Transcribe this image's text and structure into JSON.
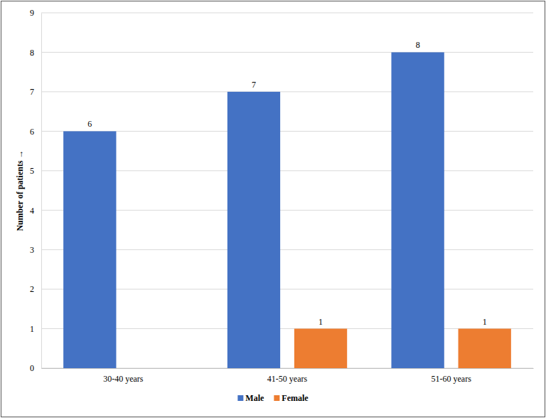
{
  "chart_data": {
    "type": "bar",
    "categories": [
      "30-40 years",
      "41-50 years",
      "51-60 years"
    ],
    "series": [
      {
        "name": "Male",
        "color": "#4472c4",
        "values": [
          6,
          7,
          8
        ]
      },
      {
        "name": "Female",
        "color": "#ed7d31",
        "values": [
          null,
          1,
          1
        ]
      }
    ],
    "y_label": "Number of patients →",
    "ylim": [
      0,
      9
    ],
    "yticks": [
      0,
      1,
      2,
      3,
      4,
      5,
      6,
      7,
      8,
      9
    ],
    "grid": true,
    "legend": "bottom",
    "data_labels": true
  }
}
